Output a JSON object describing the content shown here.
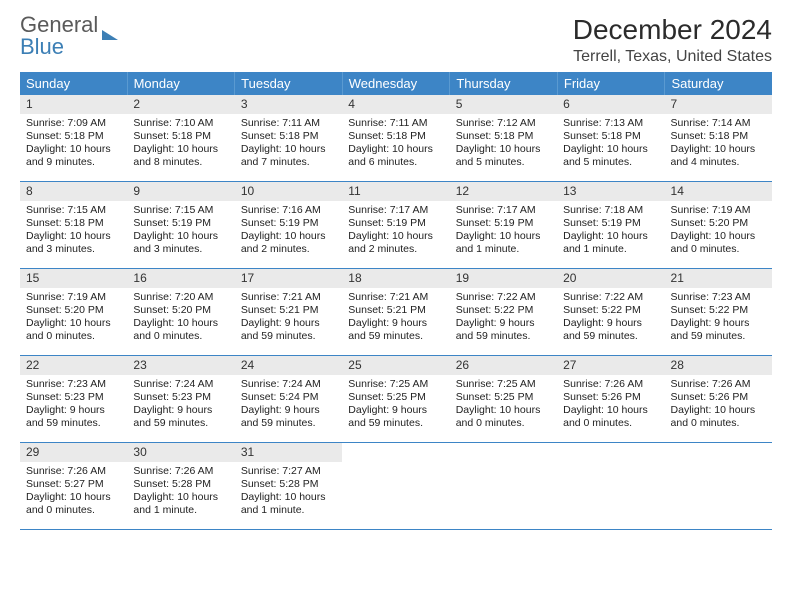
{
  "logo": {
    "line1": "General",
    "line2": "Blue"
  },
  "title": "December 2024",
  "location": "Terrell, Texas, United States",
  "weekdays": [
    "Sunday",
    "Monday",
    "Tuesday",
    "Wednesday",
    "Thursday",
    "Friday",
    "Saturday"
  ],
  "colors": {
    "header_bg": "#3d85c6",
    "header_text": "#ffffff",
    "daynum_bg": "#eaeaea",
    "border": "#3d85c6",
    "logo_gray": "#5a5a5a",
    "logo_blue": "#3c7fb5"
  },
  "weeks": [
    [
      {
        "n": "1",
        "sunrise": "7:09 AM",
        "sunset": "5:18 PM",
        "daylight": "10 hours and 9 minutes."
      },
      {
        "n": "2",
        "sunrise": "7:10 AM",
        "sunset": "5:18 PM",
        "daylight": "10 hours and 8 minutes."
      },
      {
        "n": "3",
        "sunrise": "7:11 AM",
        "sunset": "5:18 PM",
        "daylight": "10 hours and 7 minutes."
      },
      {
        "n": "4",
        "sunrise": "7:11 AM",
        "sunset": "5:18 PM",
        "daylight": "10 hours and 6 minutes."
      },
      {
        "n": "5",
        "sunrise": "7:12 AM",
        "sunset": "5:18 PM",
        "daylight": "10 hours and 5 minutes."
      },
      {
        "n": "6",
        "sunrise": "7:13 AM",
        "sunset": "5:18 PM",
        "daylight": "10 hours and 5 minutes."
      },
      {
        "n": "7",
        "sunrise": "7:14 AM",
        "sunset": "5:18 PM",
        "daylight": "10 hours and 4 minutes."
      }
    ],
    [
      {
        "n": "8",
        "sunrise": "7:15 AM",
        "sunset": "5:18 PM",
        "daylight": "10 hours and 3 minutes."
      },
      {
        "n": "9",
        "sunrise": "7:15 AM",
        "sunset": "5:19 PM",
        "daylight": "10 hours and 3 minutes."
      },
      {
        "n": "10",
        "sunrise": "7:16 AM",
        "sunset": "5:19 PM",
        "daylight": "10 hours and 2 minutes."
      },
      {
        "n": "11",
        "sunrise": "7:17 AM",
        "sunset": "5:19 PM",
        "daylight": "10 hours and 2 minutes."
      },
      {
        "n": "12",
        "sunrise": "7:17 AM",
        "sunset": "5:19 PM",
        "daylight": "10 hours and 1 minute."
      },
      {
        "n": "13",
        "sunrise": "7:18 AM",
        "sunset": "5:19 PM",
        "daylight": "10 hours and 1 minute."
      },
      {
        "n": "14",
        "sunrise": "7:19 AM",
        "sunset": "5:20 PM",
        "daylight": "10 hours and 0 minutes."
      }
    ],
    [
      {
        "n": "15",
        "sunrise": "7:19 AM",
        "sunset": "5:20 PM",
        "daylight": "10 hours and 0 minutes."
      },
      {
        "n": "16",
        "sunrise": "7:20 AM",
        "sunset": "5:20 PM",
        "daylight": "10 hours and 0 minutes."
      },
      {
        "n": "17",
        "sunrise": "7:21 AM",
        "sunset": "5:21 PM",
        "daylight": "9 hours and 59 minutes."
      },
      {
        "n": "18",
        "sunrise": "7:21 AM",
        "sunset": "5:21 PM",
        "daylight": "9 hours and 59 minutes."
      },
      {
        "n": "19",
        "sunrise": "7:22 AM",
        "sunset": "5:22 PM",
        "daylight": "9 hours and 59 minutes."
      },
      {
        "n": "20",
        "sunrise": "7:22 AM",
        "sunset": "5:22 PM",
        "daylight": "9 hours and 59 minutes."
      },
      {
        "n": "21",
        "sunrise": "7:23 AM",
        "sunset": "5:22 PM",
        "daylight": "9 hours and 59 minutes."
      }
    ],
    [
      {
        "n": "22",
        "sunrise": "7:23 AM",
        "sunset": "5:23 PM",
        "daylight": "9 hours and 59 minutes."
      },
      {
        "n": "23",
        "sunrise": "7:24 AM",
        "sunset": "5:23 PM",
        "daylight": "9 hours and 59 minutes."
      },
      {
        "n": "24",
        "sunrise": "7:24 AM",
        "sunset": "5:24 PM",
        "daylight": "9 hours and 59 minutes."
      },
      {
        "n": "25",
        "sunrise": "7:25 AM",
        "sunset": "5:25 PM",
        "daylight": "9 hours and 59 minutes."
      },
      {
        "n": "26",
        "sunrise": "7:25 AM",
        "sunset": "5:25 PM",
        "daylight": "10 hours and 0 minutes."
      },
      {
        "n": "27",
        "sunrise": "7:26 AM",
        "sunset": "5:26 PM",
        "daylight": "10 hours and 0 minutes."
      },
      {
        "n": "28",
        "sunrise": "7:26 AM",
        "sunset": "5:26 PM",
        "daylight": "10 hours and 0 minutes."
      }
    ],
    [
      {
        "n": "29",
        "sunrise": "7:26 AM",
        "sunset": "5:27 PM",
        "daylight": "10 hours and 0 minutes."
      },
      {
        "n": "30",
        "sunrise": "7:26 AM",
        "sunset": "5:28 PM",
        "daylight": "10 hours and 1 minute."
      },
      {
        "n": "31",
        "sunrise": "7:27 AM",
        "sunset": "5:28 PM",
        "daylight": "10 hours and 1 minute."
      },
      null,
      null,
      null,
      null
    ]
  ]
}
